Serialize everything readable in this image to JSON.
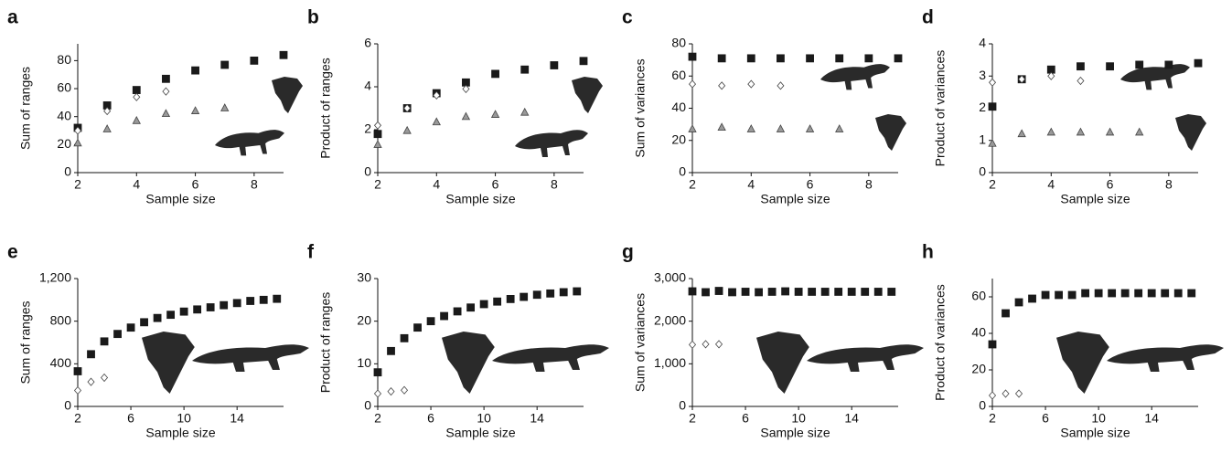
{
  "chart_data": [
    {
      "type": "scatter",
      "title": "a",
      "xlabel": "Sample size",
      "ylabel": "Sum of ranges",
      "x": [
        2,
        3,
        4,
        5,
        6,
        7,
        8,
        9
      ],
      "xlim": [
        2,
        9
      ],
      "xticks": [
        2,
        4,
        6,
        8
      ],
      "ylim": [
        0,
        92
      ],
      "yticks": [
        0,
        20,
        40,
        60,
        80
      ],
      "series": [
        {
          "color": "#1a1a1a",
          "marker": "square",
          "values": [
            32,
            48,
            59,
            67,
            73,
            77,
            80,
            84
          ]
        },
        {
          "color": "#ffffff",
          "marker": "diamond",
          "values": [
            30,
            44,
            54,
            58,
            null,
            null,
            null,
            null
          ]
        },
        {
          "color": "#999999",
          "marker": "triangle",
          "values": [
            21,
            31,
            37,
            42,
            44,
            46,
            null,
            null
          ]
        }
      ]
    },
    {
      "type": "scatter",
      "title": "b",
      "xlabel": "Sample size",
      "ylabel": "Product of ranges",
      "x": [
        2,
        3,
        4,
        5,
        6,
        7,
        8,
        9
      ],
      "xlim": [
        2,
        9
      ],
      "xticks": [
        2,
        4,
        6,
        8
      ],
      "ylim": [
        0,
        6
      ],
      "yticks": [
        0,
        2,
        4,
        6
      ],
      "series": [
        {
          "color": "#1a1a1a",
          "marker": "square",
          "values": [
            1.8,
            3.0,
            3.7,
            4.2,
            4.6,
            4.8,
            5.0,
            5.2
          ]
        },
        {
          "color": "#ffffff",
          "marker": "diamond",
          "values": [
            2.2,
            3.0,
            3.6,
            3.9,
            null,
            null,
            null,
            null
          ]
        },
        {
          "color": "#999999",
          "marker": "triangle",
          "values": [
            1.3,
            1.95,
            2.35,
            2.6,
            2.7,
            2.8,
            null,
            null
          ]
        }
      ]
    },
    {
      "type": "scatter",
      "title": "c",
      "xlabel": "Sample size",
      "ylabel": "Sum of variances",
      "x": [
        2,
        3,
        4,
        5,
        6,
        7,
        8,
        9
      ],
      "xlim": [
        2,
        9
      ],
      "xticks": [
        2,
        4,
        6,
        8
      ],
      "ylim": [
        0,
        80
      ],
      "yticks": [
        0,
        20,
        40,
        60,
        80
      ],
      "series": [
        {
          "color": "#1a1a1a",
          "marker": "square",
          "values": [
            72,
            71,
            71,
            71,
            71,
            71,
            71,
            71
          ]
        },
        {
          "color": "#ffffff",
          "marker": "diamond",
          "values": [
            55,
            54,
            55,
            54,
            null,
            null,
            null,
            null
          ]
        },
        {
          "color": "#999999",
          "marker": "triangle",
          "values": [
            27,
            28,
            27,
            27,
            27,
            27,
            null,
            null
          ]
        }
      ]
    },
    {
      "type": "scatter",
      "title": "d",
      "xlabel": "Sample size",
      "ylabel": "Product of variances",
      "x": [
        2,
        3,
        4,
        5,
        6,
        7,
        8,
        9
      ],
      "xlim": [
        2,
        9
      ],
      "xticks": [
        2,
        4,
        6,
        8
      ],
      "ylim": [
        0,
        4
      ],
      "yticks": [
        0,
        1,
        2,
        3,
        4
      ],
      "series": [
        {
          "color": "#1a1a1a",
          "marker": "square",
          "values": [
            2.05,
            2.9,
            3.2,
            3.3,
            3.3,
            3.35,
            3.35,
            3.4
          ]
        },
        {
          "color": "#ffffff",
          "marker": "diamond",
          "values": [
            2.8,
            2.9,
            3.0,
            2.85,
            null,
            null,
            null,
            null
          ]
        },
        {
          "color": "#999999",
          "marker": "triangle",
          "values": [
            0.9,
            1.2,
            1.25,
            1.25,
            1.25,
            1.25,
            null,
            null
          ]
        }
      ]
    },
    {
      "type": "scatter",
      "title": "e",
      "xlabel": "Sample size",
      "ylabel": "Sum of ranges",
      "x": [
        2,
        3,
        4,
        5,
        6,
        7,
        8,
        9,
        10,
        11,
        12,
        13,
        14,
        15,
        16,
        17
      ],
      "xlim": [
        2,
        17.5
      ],
      "xticks": [
        2,
        6,
        10,
        14
      ],
      "ylim": [
        0,
        1200
      ],
      "yticks": [
        0,
        400,
        800,
        {
          "value": 1200,
          "label": "1,200"
        }
      ],
      "series": [
        {
          "color": "#1a1a1a",
          "marker": "square",
          "values": [
            330,
            490,
            610,
            680,
            740,
            790,
            830,
            860,
            890,
            910,
            930,
            950,
            970,
            990,
            1000,
            1010
          ]
        },
        {
          "color": "#ffffff",
          "marker": "diamond",
          "values": [
            150,
            230,
            270,
            null,
            null,
            null,
            null,
            null,
            null,
            null,
            null,
            null,
            null,
            null,
            null,
            null
          ]
        }
      ]
    },
    {
      "type": "scatter",
      "title": "f",
      "xlabel": "Sample size",
      "ylabel": "Product of ranges",
      "x": [
        2,
        3,
        4,
        5,
        6,
        7,
        8,
        9,
        10,
        11,
        12,
        13,
        14,
        15,
        16,
        17
      ],
      "xlim": [
        2,
        17.5
      ],
      "xticks": [
        2,
        6,
        10,
        14
      ],
      "ylim": [
        0,
        30
      ],
      "yticks": [
        0,
        10,
        20,
        30
      ],
      "series": [
        {
          "color": "#1a1a1a",
          "marker": "square",
          "values": [
            8,
            13,
            16,
            18.5,
            20,
            21.2,
            22.3,
            23.2,
            24,
            24.6,
            25.2,
            25.7,
            26.2,
            26.5,
            26.8,
            27
          ]
        },
        {
          "color": "#ffffff",
          "marker": "diamond",
          "values": [
            3,
            3.5,
            3.8,
            null,
            null,
            null,
            null,
            null,
            null,
            null,
            null,
            null,
            null,
            null,
            null,
            null
          ]
        }
      ]
    },
    {
      "type": "scatter",
      "title": "g",
      "xlabel": "Sample size",
      "ylabel": "Sum of variances",
      "x": [
        2,
        3,
        4,
        5,
        6,
        7,
        8,
        9,
        10,
        11,
        12,
        13,
        14,
        15,
        16,
        17
      ],
      "xlim": [
        2,
        17.5
      ],
      "xticks": [
        2,
        6,
        10,
        14
      ],
      "ylim": [
        0,
        3000
      ],
      "yticks": [
        0,
        {
          "value": 1000,
          "label": "1,000"
        },
        {
          "value": 2000,
          "label": "2,000"
        },
        {
          "value": 3000,
          "label": "3,000"
        }
      ],
      "series": [
        {
          "color": "#1a1a1a",
          "marker": "square",
          "values": [
            2700,
            2680,
            2710,
            2680,
            2690,
            2680,
            2690,
            2700,
            2690,
            2690,
            2690,
            2690,
            2690,
            2690,
            2690,
            2690
          ]
        },
        {
          "color": "#ffffff",
          "marker": "diamond",
          "values": [
            1450,
            1460,
            1460,
            null,
            null,
            null,
            null,
            null,
            null,
            null,
            null,
            null,
            null,
            null,
            null,
            null
          ]
        }
      ]
    },
    {
      "type": "scatter",
      "title": "h",
      "xlabel": "Sample size",
      "ylabel": "Product of variances",
      "x": [
        2,
        3,
        4,
        5,
        6,
        7,
        8,
        9,
        10,
        11,
        12,
        13,
        14,
        15,
        16,
        17
      ],
      "xlim": [
        2,
        17.5
      ],
      "xticks": [
        2,
        6,
        10,
        14
      ],
      "ylim": [
        0,
        70
      ],
      "yticks": [
        0,
        20,
        40,
        60
      ],
      "series": [
        {
          "color": "#1a1a1a",
          "marker": "square",
          "values": [
            34,
            51,
            57,
            59,
            61,
            61,
            61,
            62,
            62,
            62,
            62,
            62,
            62,
            62,
            62,
            62
          ]
        },
        {
          "color": "#ffffff",
          "marker": "diamond",
          "values": [
            6,
            7,
            7,
            null,
            null,
            null,
            null,
            null,
            null,
            null,
            null,
            null,
            null,
            null,
            null,
            null
          ]
        }
      ]
    }
  ]
}
